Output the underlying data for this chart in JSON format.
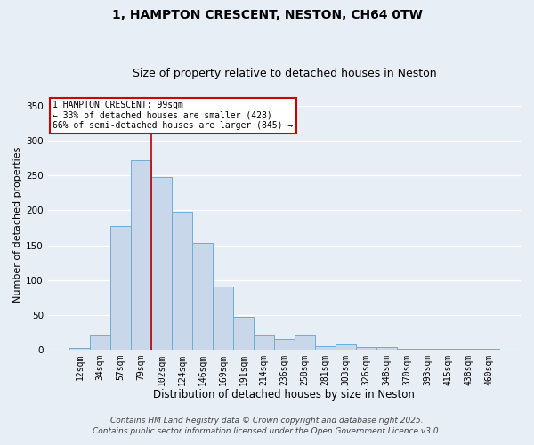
{
  "title": "1, HAMPTON CRESCENT, NESTON, CH64 0TW",
  "subtitle": "Size of property relative to detached houses in Neston",
  "xlabel": "Distribution of detached houses by size in Neston",
  "ylabel": "Number of detached properties",
  "bar_color": "#c8d8ea",
  "bar_edge_color": "#6aaed6",
  "background_color": "#e8eef5",
  "grid_color": "#ffffff",
  "categories": [
    "12sqm",
    "34sqm",
    "57sqm",
    "79sqm",
    "102sqm",
    "124sqm",
    "146sqm",
    "169sqm",
    "191sqm",
    "214sqm",
    "236sqm",
    "258sqm",
    "281sqm",
    "303sqm",
    "326sqm",
    "348sqm",
    "370sqm",
    "393sqm",
    "415sqm",
    "438sqm",
    "460sqm"
  ],
  "values": [
    2,
    22,
    178,
    272,
    248,
    198,
    153,
    90,
    47,
    22,
    15,
    21,
    5,
    7,
    4,
    4,
    1,
    1,
    1,
    1,
    1
  ],
  "ylim": [
    0,
    360
  ],
  "yticks": [
    0,
    50,
    100,
    150,
    200,
    250,
    300,
    350
  ],
  "vline_x": 3.5,
  "vline_color": "#bb0000",
  "annotation_text": "1 HAMPTON CRESCENT: 99sqm\n← 33% of detached houses are smaller (428)\n66% of semi-detached houses are larger (845) →",
  "footer_line1": "Contains HM Land Registry data © Crown copyright and database right 2025.",
  "footer_line2": "Contains public sector information licensed under the Open Government Licence v3.0.",
  "title_fontsize": 10,
  "subtitle_fontsize": 9,
  "xlabel_fontsize": 8.5,
  "ylabel_fontsize": 8,
  "tick_fontsize": 7,
  "annot_fontsize": 7,
  "footer_fontsize": 6.5
}
